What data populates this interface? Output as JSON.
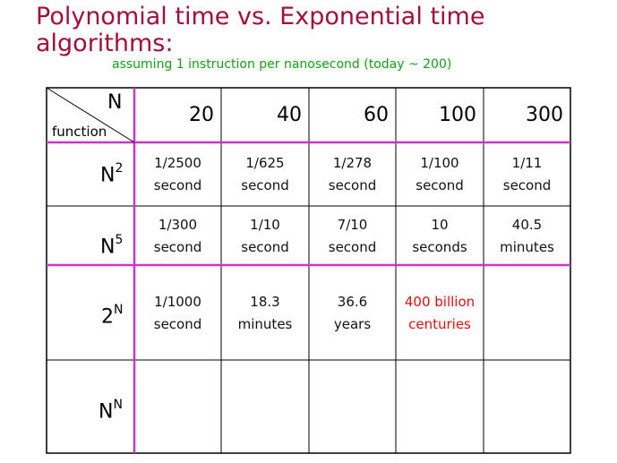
{
  "title_line1": "Polynomial time vs. Exponential time",
  "title_line2": "algorithms:",
  "subtitle": "assuming 1 instruction per nanosecond (today ~ 200)",
  "corner": {
    "n_label": "N",
    "function_label": "function"
  },
  "columns": [
    "20",
    "40",
    "60",
    "100",
    "300"
  ],
  "rows": [
    {
      "base": "N",
      "exp": "2",
      "cells": [
        [
          "1/2500",
          "second"
        ],
        [
          "1/625",
          "second"
        ],
        [
          "1/278",
          "second"
        ],
        [
          "1/100",
          "second"
        ],
        [
          "1/11",
          "second"
        ]
      ]
    },
    {
      "base": "N",
      "exp": "5",
      "cells": [
        [
          "1/300",
          "second"
        ],
        [
          "1/10",
          "second"
        ],
        [
          "7/10",
          "second"
        ],
        [
          "10",
          "seconds"
        ],
        [
          "40.5",
          "minutes"
        ]
      ]
    },
    {
      "base": "2",
      "exp": "N",
      "cells": [
        [
          "1/1000",
          "second"
        ],
        [
          "18.3",
          "minutes"
        ],
        [
          "36.6",
          "years"
        ],
        [
          "400 billion",
          "centuries"
        ],
        [
          "",
          ""
        ]
      ]
    },
    {
      "base": "N",
      "exp": "N",
      "cells": [
        [
          "",
          ""
        ],
        [
          "",
          ""
        ],
        [
          "",
          ""
        ],
        [
          "",
          ""
        ],
        [
          "",
          ""
        ]
      ]
    }
  ],
  "highlight_cell": {
    "row": 2,
    "col": 3,
    "color": "#e01010"
  },
  "colors": {
    "title": "#a0103a",
    "subtitle": "#15a015",
    "accent_lines": "#cc33cc",
    "grid_lines": "#000000"
  }
}
